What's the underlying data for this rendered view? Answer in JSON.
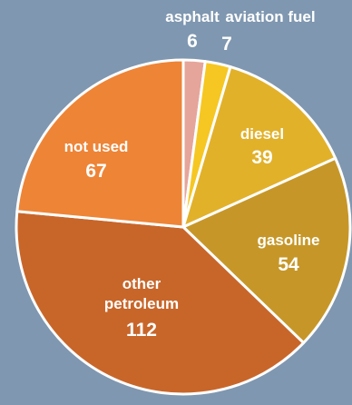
{
  "chart_data": {
    "type": "pie",
    "slices": [
      {
        "label": "asphalt",
        "value": 6,
        "color": "#e6a59a"
      },
      {
        "label": "aviation fuel",
        "value": 7,
        "color": "#f6c722"
      },
      {
        "label": "diesel",
        "value": 39,
        "color": "#e2b12a"
      },
      {
        "label": "gasoline",
        "value": 54,
        "color": "#c69728"
      },
      {
        "label": "other petroleum",
        "value": 112,
        "color": "#c8662a"
      },
      {
        "label": "not used",
        "value": 67,
        "color": "#ee8436"
      }
    ],
    "title": "",
    "legend": "none",
    "start_angle_deg": 0,
    "direction": "clockwise",
    "border_color": "#ffffff"
  }
}
